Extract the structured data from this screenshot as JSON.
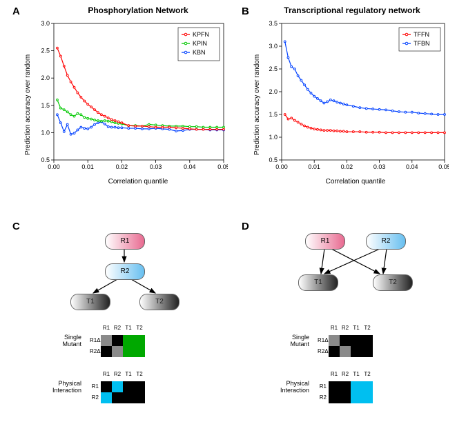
{
  "labels": {
    "A": "A",
    "B": "B",
    "C": "C",
    "D": "D"
  },
  "panelA": {
    "title": "Phosphorylation Network",
    "xlabel": "Correlation quantile",
    "ylabel": "Prediction accuracy over random",
    "xlim": [
      0,
      0.05
    ],
    "ylim": [
      0.5,
      3.0
    ],
    "xticks": [
      0.0,
      0.01,
      0.02,
      0.03,
      0.04,
      0.05
    ],
    "yticks": [
      0.5,
      1.0,
      1.5,
      2.0,
      2.5,
      3.0
    ],
    "background_color": "#ffffff",
    "axis_color": "#000000",
    "point_radius": 1.4,
    "line_width": 1.2,
    "legend": [
      "KPFN",
      "KPIN",
      "KBN"
    ],
    "series": {
      "KPFN": {
        "color": "#ff0000",
        "x": [
          0.001,
          0.002,
          0.003,
          0.004,
          0.005,
          0.006,
          0.007,
          0.008,
          0.009,
          0.01,
          0.011,
          0.012,
          0.013,
          0.014,
          0.015,
          0.016,
          0.017,
          0.018,
          0.019,
          0.02,
          0.022,
          0.024,
          0.026,
          0.028,
          0.03,
          0.032,
          0.034,
          0.036,
          0.038,
          0.04,
          0.042,
          0.044,
          0.046,
          0.048,
          0.05
        ],
        "y": [
          2.55,
          2.4,
          2.22,
          2.05,
          1.93,
          1.83,
          1.73,
          1.65,
          1.58,
          1.52,
          1.47,
          1.42,
          1.37,
          1.33,
          1.3,
          1.27,
          1.24,
          1.22,
          1.2,
          1.18,
          1.13,
          1.12,
          1.12,
          1.11,
          1.1,
          1.1,
          1.1,
          1.09,
          1.08,
          1.07,
          1.06,
          1.06,
          1.06,
          1.06,
          1.06
        ]
      },
      "KPIN": {
        "color": "#00c800",
        "x": [
          0.001,
          0.002,
          0.003,
          0.004,
          0.005,
          0.006,
          0.007,
          0.008,
          0.009,
          0.01,
          0.011,
          0.012,
          0.013,
          0.014,
          0.015,
          0.016,
          0.017,
          0.018,
          0.019,
          0.02,
          0.022,
          0.024,
          0.026,
          0.028,
          0.03,
          0.032,
          0.034,
          0.036,
          0.038,
          0.04,
          0.042,
          0.044,
          0.046,
          0.048,
          0.05
        ],
        "y": [
          1.6,
          1.45,
          1.42,
          1.38,
          1.33,
          1.3,
          1.35,
          1.33,
          1.28,
          1.26,
          1.25,
          1.23,
          1.22,
          1.21,
          1.22,
          1.21,
          1.2,
          1.18,
          1.17,
          1.16,
          1.13,
          1.13,
          1.12,
          1.15,
          1.14,
          1.13,
          1.12,
          1.12,
          1.12,
          1.11,
          1.11,
          1.1,
          1.1,
          1.1,
          1.1
        ]
      },
      "KBN": {
        "color": "#0040ff",
        "x": [
          0.001,
          0.002,
          0.003,
          0.004,
          0.005,
          0.006,
          0.007,
          0.008,
          0.009,
          0.01,
          0.011,
          0.012,
          0.013,
          0.014,
          0.015,
          0.016,
          0.017,
          0.018,
          0.019,
          0.02,
          0.022,
          0.024,
          0.026,
          0.028,
          0.03,
          0.032,
          0.034,
          0.036,
          0.038,
          0.04,
          0.042,
          0.044,
          0.046,
          0.048,
          0.05
        ],
        "y": [
          1.33,
          1.18,
          1.02,
          1.15,
          0.97,
          0.99,
          1.05,
          1.1,
          1.08,
          1.07,
          1.1,
          1.15,
          1.18,
          1.2,
          1.16,
          1.11,
          1.1,
          1.1,
          1.09,
          1.09,
          1.08,
          1.08,
          1.07,
          1.07,
          1.08,
          1.07,
          1.06,
          1.03,
          1.04,
          1.06,
          1.06,
          1.06,
          1.05,
          1.05,
          1.05
        ]
      }
    }
  },
  "panelB": {
    "title": "Transcriptional regulatory network",
    "xlabel": "Correlation quantile",
    "ylabel": "Prediction accuracy over random",
    "xlim": [
      0,
      0.05
    ],
    "ylim": [
      0.5,
      3.5
    ],
    "xticks": [
      0.0,
      0.01,
      0.02,
      0.03,
      0.04,
      0.05
    ],
    "yticks": [
      0.5,
      1.0,
      1.5,
      2.0,
      2.5,
      3.0,
      3.5
    ],
    "background_color": "#ffffff",
    "axis_color": "#000000",
    "point_radius": 1.4,
    "line_width": 1.2,
    "legend": [
      "TFFN",
      "TFBN"
    ],
    "series": {
      "TFBN": {
        "color": "#0040ff",
        "x": [
          0.001,
          0.002,
          0.003,
          0.004,
          0.005,
          0.006,
          0.007,
          0.008,
          0.009,
          0.01,
          0.011,
          0.012,
          0.013,
          0.014,
          0.015,
          0.016,
          0.017,
          0.018,
          0.019,
          0.02,
          0.022,
          0.024,
          0.026,
          0.028,
          0.03,
          0.032,
          0.034,
          0.036,
          0.038,
          0.04,
          0.042,
          0.044,
          0.046,
          0.048,
          0.05
        ],
        "y": [
          3.1,
          2.75,
          2.55,
          2.5,
          2.35,
          2.25,
          2.15,
          2.05,
          1.97,
          1.9,
          1.85,
          1.8,
          1.75,
          1.78,
          1.82,
          1.8,
          1.77,
          1.75,
          1.73,
          1.71,
          1.68,
          1.65,
          1.63,
          1.62,
          1.61,
          1.6,
          1.58,
          1.56,
          1.55,
          1.55,
          1.53,
          1.52,
          1.51,
          1.5,
          1.5
        ]
      },
      "TFFN": {
        "color": "#ff0000",
        "x": [
          0.001,
          0.002,
          0.003,
          0.004,
          0.005,
          0.006,
          0.007,
          0.008,
          0.009,
          0.01,
          0.011,
          0.012,
          0.013,
          0.014,
          0.015,
          0.016,
          0.017,
          0.018,
          0.019,
          0.02,
          0.022,
          0.024,
          0.026,
          0.028,
          0.03,
          0.032,
          0.034,
          0.036,
          0.038,
          0.04,
          0.042,
          0.044,
          0.046,
          0.048,
          0.05
        ],
        "y": [
          1.5,
          1.4,
          1.42,
          1.37,
          1.33,
          1.29,
          1.25,
          1.22,
          1.2,
          1.18,
          1.17,
          1.16,
          1.15,
          1.15,
          1.15,
          1.14,
          1.14,
          1.13,
          1.13,
          1.12,
          1.12,
          1.12,
          1.11,
          1.11,
          1.11,
          1.1,
          1.1,
          1.1,
          1.1,
          1.1,
          1.1,
          1.1,
          1.1,
          1.1,
          1.1
        ]
      }
    }
  },
  "diagram": {
    "node_labels": {
      "R1": "R1",
      "R2": "R2",
      "T1": "T1",
      "T2": "T2"
    },
    "group_labels": {
      "single": "Single\nMutant",
      "physical": "Physical\nInteraction"
    },
    "headers": [
      "R1",
      "R2",
      "T1",
      "T2"
    ],
    "rowC_single": [
      "R1Δ",
      "R2Δ"
    ],
    "rowC_phys": [
      "R1",
      "R2"
    ],
    "C_single_colors": [
      [
        "grey",
        "black",
        "green",
        "green"
      ],
      [
        "black",
        "grey",
        "green",
        "green"
      ]
    ],
    "C_phys_colors": [
      [
        "black",
        "cyan",
        "black",
        "black"
      ],
      [
        "cyan",
        "black",
        "black",
        "black"
      ]
    ],
    "D_single_colors": [
      [
        "grey",
        "black",
        "black",
        "black"
      ],
      [
        "black",
        "grey",
        "black",
        "black"
      ]
    ],
    "D_phys_colors": [
      [
        "black",
        "black",
        "cyan",
        "cyan"
      ],
      [
        "black",
        "black",
        "cyan",
        "cyan"
      ]
    ],
    "palette": {
      "black": "#000000",
      "grey": "#8a8a8a",
      "green": "#00a800",
      "cyan": "#00bff0"
    }
  }
}
